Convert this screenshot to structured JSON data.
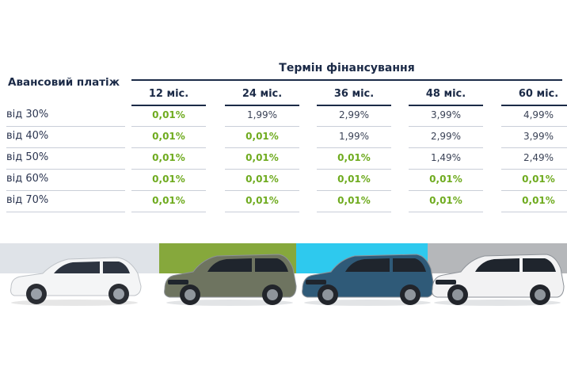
{
  "table": {
    "advance_header": "Авансовий платіж",
    "term_header": "Термін фінансування",
    "terms": [
      "12 міс.",
      "24 міс.",
      "36 міс.",
      "48 міс.",
      "60 міс."
    ],
    "rows": [
      {
        "label": "від 30%",
        "values": [
          "0,01%",
          "1,99%",
          "2,99%",
          "3,99%",
          "4,99%"
        ],
        "highlight": [
          true,
          false,
          false,
          false,
          false
        ]
      },
      {
        "label": "від 40%",
        "values": [
          "0,01%",
          "0,01%",
          "1,99%",
          "2,99%",
          "3,99%"
        ],
        "highlight": [
          true,
          true,
          false,
          false,
          false
        ]
      },
      {
        "label": "від 50%",
        "values": [
          "0,01%",
          "0,01%",
          "0,01%",
          "1,49%",
          "2,49%"
        ],
        "highlight": [
          true,
          true,
          true,
          false,
          false
        ]
      },
      {
        "label": "від 60%",
        "values": [
          "0,01%",
          "0,01%",
          "0,01%",
          "0,01%",
          "0,01%"
        ],
        "highlight": [
          true,
          true,
          true,
          true,
          true
        ]
      },
      {
        "label": "від 70%",
        "values": [
          "0,01%",
          "0,01%",
          "0,01%",
          "0,01%",
          "0,01%"
        ],
        "highlight": [
          true,
          true,
          true,
          true,
          true
        ]
      }
    ],
    "highlight_color": "#6fab1f"
  },
  "cars": [
    {
      "band_color": "#dfe3e8",
      "body_color": "#f4f5f6"
    },
    {
      "band_color": "#86a83c",
      "body_color": "#6e7460"
    },
    {
      "band_color": "#2ec9ee",
      "body_color": "#2f5a78"
    },
    {
      "band_color": "#b5b7ba",
      "body_color": "#f2f2f3"
    }
  ]
}
